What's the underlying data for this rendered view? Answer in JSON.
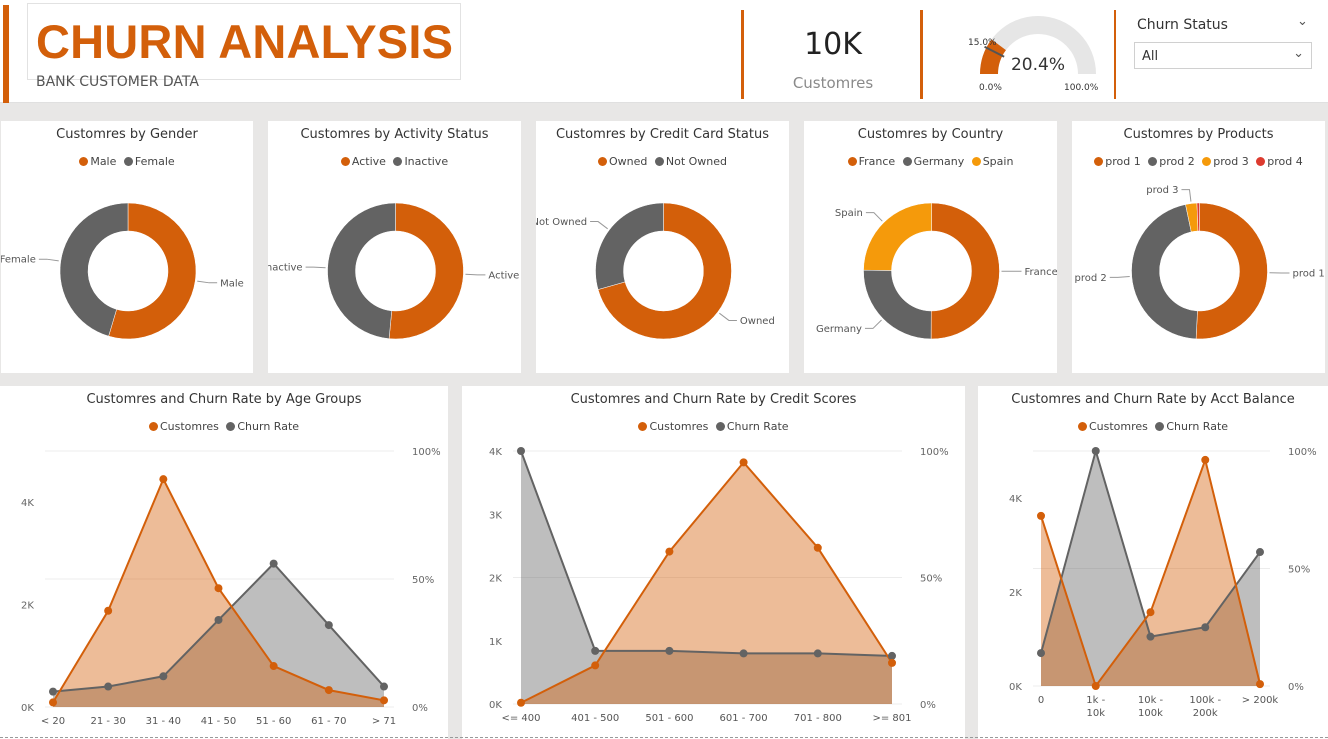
{
  "header": {
    "title": "CHURN ANALYSIS",
    "subtitle": "BANK CUSTOMER DATA",
    "kpi_value": "10K",
    "kpi_label": "Customres"
  },
  "gauge": {
    "value_label": "20.4%",
    "target_label": "15.0%",
    "min_label": "0.0%",
    "max_label": "100.0%",
    "value": 20.4,
    "target": 15.0,
    "min": 0,
    "max": 100
  },
  "slicer": {
    "title": "Churn Status",
    "value": "All"
  },
  "colors": {
    "orange": "#d35f0a",
    "gray": "#636363",
    "amber": "#f59a0b",
    "red": "#dd3b2f",
    "orange_fill": "#e9b48e",
    "gray_fill": "#bdbdbd",
    "overlap_fill": "#a98b78"
  },
  "donuts": [
    {
      "title": "Customres by Gender",
      "legend": [
        "Male",
        "Female"
      ],
      "slices": [
        {
          "label": "Male",
          "value": 54.6,
          "color": "#d35f0a",
          "show_label": "Male"
        },
        {
          "label": "Female",
          "value": 45.4,
          "color": "#636363",
          "show_label": "Female"
        }
      ]
    },
    {
      "title": "Customres by Activity Status",
      "legend": [
        "Active",
        "Inactive"
      ],
      "slices": [
        {
          "label": "Active",
          "value": 51.5,
          "color": "#d35f0a",
          "show_label": "Active"
        },
        {
          "label": "Inactive",
          "value": 48.5,
          "color": "#636363",
          "show_label": "Inactive"
        }
      ]
    },
    {
      "title": "Customres by Credit Card Status",
      "legend": [
        "Owned",
        "Not Owned"
      ],
      "slices": [
        {
          "label": "Owned",
          "value": 70.6,
          "color": "#d35f0a",
          "show_label": "Owned"
        },
        {
          "label": "Not Owned",
          "value": 29.4,
          "color": "#636363",
          "show_label": "Not Owned"
        }
      ]
    },
    {
      "title": "Customres by Country",
      "legend": [
        "France",
        "Germany",
        "Spain"
      ],
      "slices": [
        {
          "label": "France",
          "value": 50.1,
          "color": "#d35f0a",
          "show_label": "France"
        },
        {
          "label": "Germany",
          "value": 25.1,
          "color": "#636363",
          "show_label": "Germany"
        },
        {
          "label": "Spain",
          "value": 24.8,
          "color": "#f59a0b",
          "show_label": "Spain"
        }
      ]
    },
    {
      "title": "Customres by Products",
      "legend": [
        "prod 1",
        "prod 2",
        "prod 3",
        "prod 4"
      ],
      "slices": [
        {
          "label": "prod 1",
          "value": 50.8,
          "color": "#d35f0a",
          "show_label": "prod 1"
        },
        {
          "label": "prod 2",
          "value": 45.9,
          "color": "#636363",
          "show_label": "prod 2"
        },
        {
          "label": "prod 3",
          "value": 2.7,
          "color": "#f59a0b",
          "show_label": "prod 3"
        },
        {
          "label": "prod 4",
          "value": 0.6,
          "color": "#dd3b2f",
          "show_label": ""
        }
      ]
    }
  ],
  "chart_data": [
    {
      "type": "area",
      "title": "Customres and Churn Rate by Age Groups",
      "legend": [
        "Customres",
        "Churn Rate"
      ],
      "categories": [
        "< 20",
        "21 - 30",
        "31 - 40",
        "41 - 50",
        "51 - 60",
        "61 - 70",
        "> 71"
      ],
      "series": [
        {
          "name": "Customres",
          "axis": "left",
          "values": [
            90,
            1880,
            4450,
            2320,
            800,
            330,
            130
          ]
        },
        {
          "name": "Churn Rate",
          "axis": "right",
          "values": [
            6,
            8,
            12,
            34,
            56,
            32,
            8
          ]
        }
      ],
      "yleft_ticks": [
        "0K",
        "2K",
        "4K"
      ],
      "yleft_lim": [
        0,
        5000
      ],
      "yright_ticks": [
        "0%",
        "50%",
        "100%"
      ],
      "yright_lim": [
        0,
        100
      ]
    },
    {
      "type": "area",
      "title": "Customres and Churn Rate by Credit Scores",
      "legend": [
        "Customres",
        "Churn Rate"
      ],
      "categories": [
        "<= 400",
        "401 - 500",
        "501 - 600",
        "601 - 700",
        "701 - 800",
        ">= 801"
      ],
      "series": [
        {
          "name": "Customres",
          "axis": "left",
          "values": [
            20,
            610,
            2410,
            3820,
            2470,
            650
          ]
        },
        {
          "name": "Churn Rate",
          "axis": "right",
          "values": [
            100,
            21,
            21,
            20,
            20,
            19
          ]
        }
      ],
      "yleft_ticks": [
        "0K",
        "1K",
        "2K",
        "3K",
        "4K"
      ],
      "yleft_lim": [
        0,
        4000
      ],
      "yright_ticks": [
        "0%",
        "50%",
        "100%"
      ],
      "yright_lim": [
        0,
        100
      ]
    },
    {
      "type": "area",
      "title": "Customres and Churn Rate by Acct Balance",
      "legend": [
        "Customres",
        "Churn Rate"
      ],
      "categories": [
        "0",
        "1k - 10k",
        "10k - 100k",
        "100k - 200k",
        "> 200k"
      ],
      "series": [
        {
          "name": "Customres",
          "axis": "left",
          "values": [
            3620,
            0,
            1570,
            4810,
            40
          ]
        },
        {
          "name": "Churn Rate",
          "axis": "right",
          "values": [
            14,
            100,
            21,
            25,
            57
          ]
        }
      ],
      "yleft_ticks": [
        "0K",
        "2K",
        "4K"
      ],
      "yleft_lim": [
        0,
        5000
      ],
      "yright_ticks": [
        "0%",
        "50%",
        "100%"
      ],
      "yright_lim": [
        0,
        100
      ]
    }
  ]
}
